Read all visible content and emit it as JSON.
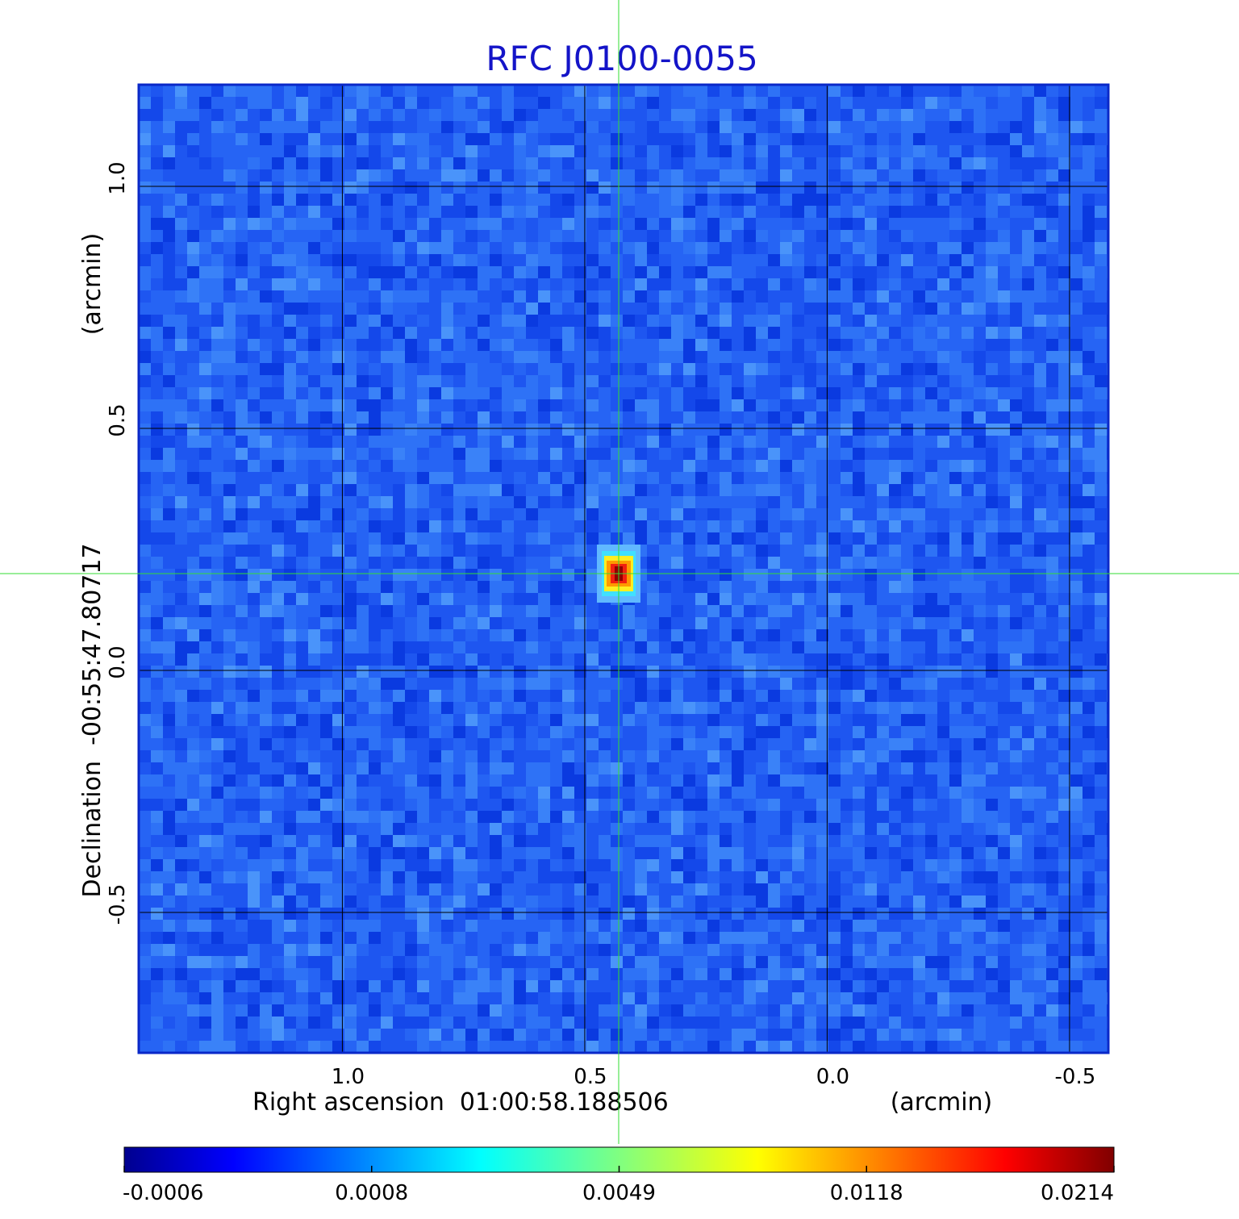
{
  "chart_data": {
    "type": "heatmap",
    "title": "RFC J0100-0055",
    "xlabel": "Right ascension  01:00:58.188506",
    "xlabel_unit": "(arcmin)",
    "ylabel": "Declination  -00:55:47.80717",
    "ylabel_unit": "(arcmin)",
    "x_ticks": [
      {
        "value": 1.0,
        "label": "1.0"
      },
      {
        "value": 0.5,
        "label": "0.5"
      },
      {
        "value": 0.0,
        "label": "0.0"
      },
      {
        "value": -0.5,
        "label": "-0.5"
      }
    ],
    "y_ticks": [
      {
        "value": 1.0,
        "label": "1.0"
      },
      {
        "value": 0.5,
        "label": "0.5"
      },
      {
        "value": 0.0,
        "label": "0.0"
      },
      {
        "value": -0.5,
        "label": "-0.5"
      }
    ],
    "xlim": [
      1.42,
      -0.58
    ],
    "ylim": [
      -0.79,
      1.21
    ],
    "x_axis_reversed": true,
    "grid": true,
    "crosshair": {
      "x": 0.43,
      "y": 0.2
    },
    "source_peak": {
      "x": 0.43,
      "y": 0.2,
      "value": 0.0214
    },
    "colorbar": {
      "colormap": "jet",
      "orientation": "horizontal",
      "placement": "bottom",
      "tick_labels": [
        "-0.0006",
        "0.0008",
        "0.0049",
        "0.0118",
        "0.0214"
      ]
    },
    "colors": {
      "title": "#1414c8",
      "grid": "#000000",
      "crosshair": "#33dd33",
      "frame": "#0a28c8",
      "background_noise": "#1e5af0"
    }
  }
}
